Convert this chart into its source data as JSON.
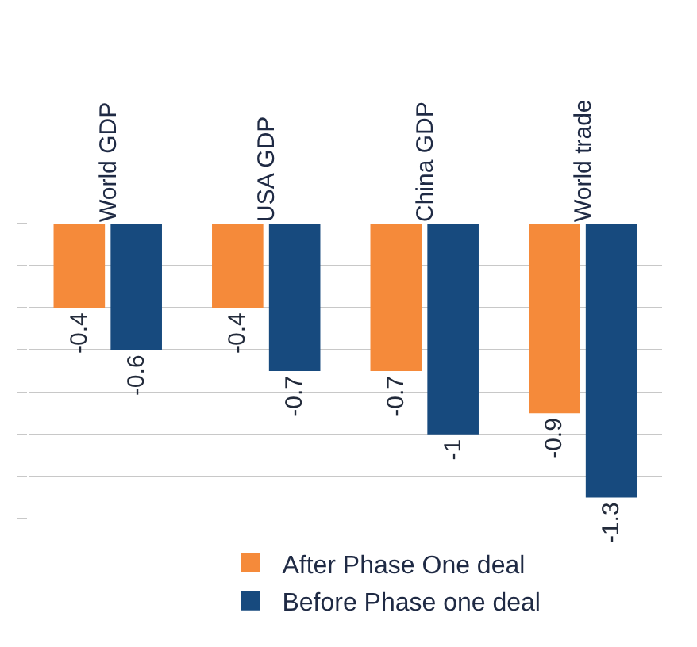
{
  "chart_data": {
    "type": "bar",
    "categories": [
      "World GDP",
      "USA GDP",
      "China GDP",
      "World trade"
    ],
    "series": [
      {
        "name": "After Phase One deal",
        "color": "#f58a3a",
        "values": [
          -0.4,
          -0.4,
          -0.7,
          -0.9
        ]
      },
      {
        "name": "Before Phase one deal",
        "color": "#174a7e",
        "values": [
          -0.6,
          -0.7,
          -1,
          -1.3
        ]
      }
    ],
    "yticks": [
      {
        "value": 0,
        "label": null
      },
      {
        "value": -0.2,
        "label": null
      },
      {
        "value": -0.4,
        "label": null
      },
      {
        "value": -0.6,
        "label": null
      },
      {
        "value": -0.8,
        "label": null
      },
      {
        "value": -1,
        "label": null
      },
      {
        "value": -1.2,
        "label": null
      },
      {
        "value": -1.4,
        "label": null
      }
    ],
    "grid": "y",
    "tick_labels": "x",
    "data_labels": true,
    "legend": "bottom"
  }
}
